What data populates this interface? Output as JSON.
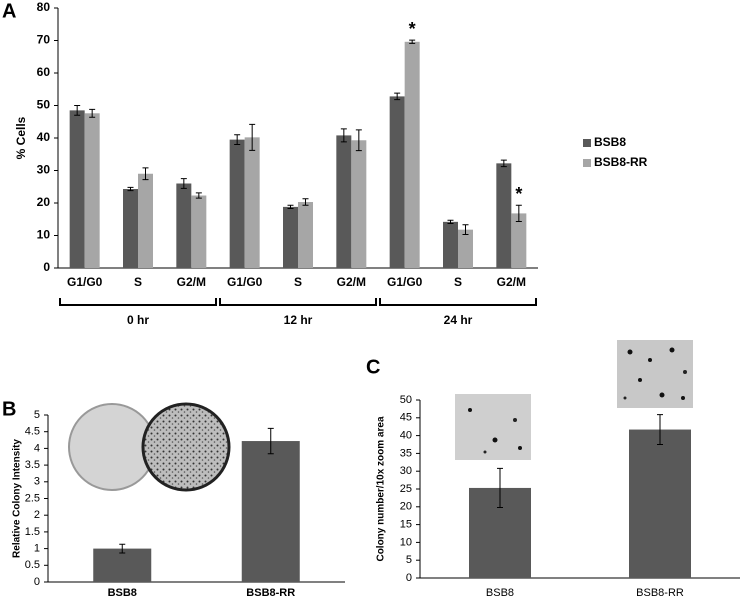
{
  "chart_data": [
    {
      "type": "bar",
      "label": "A",
      "ylabel": "% Cells",
      "categories": [
        "G1/G0",
        "S",
        "G2/M",
        "G1/G0",
        "S",
        "G2/M",
        "G1/G0",
        "S",
        "G2/M"
      ],
      "group_labels": [
        "0 hr",
        "12 hr",
        "24 hr"
      ],
      "series": [
        {
          "name": "BSB8",
          "color": "#595959",
          "values": [
            48.5,
            24.3,
            26,
            39.5,
            18.8,
            40.8,
            52.8,
            14.2,
            32.2
          ],
          "errors": [
            1.5,
            0.5,
            1.5,
            1.5,
            0.5,
            2,
            1,
            0.5,
            1
          ]
        },
        {
          "name": "BSB8-RR",
          "color": "#a6a6a6",
          "values": [
            47.6,
            29,
            22.3,
            40.2,
            20.3,
            39.3,
            69.6,
            11.8,
            16.8
          ],
          "errors": [
            1.2,
            1.8,
            0.8,
            4,
            1,
            3.2,
            0.5,
            1.5,
            2.5
          ],
          "annotations": [
            null,
            null,
            null,
            null,
            null,
            null,
            "*",
            null,
            "*"
          ]
        }
      ],
      "ylim": [
        0,
        80
      ],
      "yticks": [
        0,
        10,
        20,
        30,
        40,
        50,
        60,
        70,
        80
      ],
      "legend": "right"
    },
    {
      "type": "bar",
      "label": "B",
      "ylabel": "Relative Colony Intensity",
      "categories": [
        "BSB8",
        "BSB8-RR"
      ],
      "series": [
        {
          "color": "#595959",
          "values": [
            1.0,
            4.22
          ],
          "errors": [
            0.13,
            0.38
          ]
        }
      ],
      "ylim": [
        0,
        5
      ],
      "yticks": [
        0,
        0.5,
        1,
        1.5,
        2,
        2.5,
        3,
        3.5,
        4,
        4.5,
        5
      ]
    },
    {
      "type": "bar",
      "label": "C",
      "ylabel": "Colony number/10x zoom area",
      "categories": [
        "BSB8",
        "BSB8-RR"
      ],
      "series": [
        {
          "color": "#595959",
          "values": [
            25.3,
            41.7
          ],
          "errors": [
            5.5,
            4.2
          ]
        }
      ],
      "ylim": [
        0,
        50
      ],
      "yticks": [
        0,
        5,
        10,
        15,
        20,
        25,
        30,
        35,
        40,
        45,
        50
      ]
    }
  ]
}
